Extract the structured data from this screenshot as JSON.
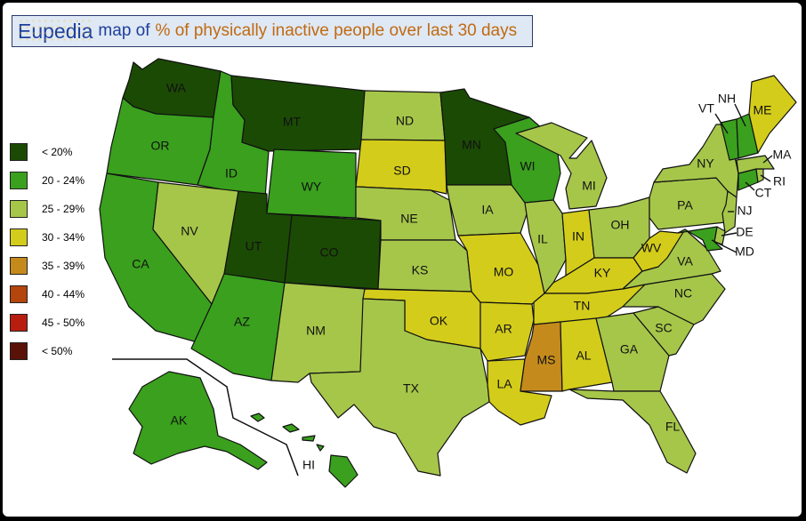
{
  "title": {
    "brand": "Eupedia",
    "map_of": "map of",
    "subject": "% of physically inactive people over last 30 days"
  },
  "legend": [
    {
      "label": "< 20%",
      "color": "#1b4a05"
    },
    {
      "label": "20 - 24%",
      "color": "#3aa01e"
    },
    {
      "label": "25 - 29%",
      "color": "#a6c64a"
    },
    {
      "label": "30 - 34%",
      "color": "#d4cc1a"
    },
    {
      "label": "35 - 39%",
      "color": "#c48a1c"
    },
    {
      "label": "40 - 44%",
      "color": "#b4450c"
    },
    {
      "label": "45 - 50%",
      "color": "#b81e10"
    },
    {
      "label": "< 50%",
      "color": "#5a1208"
    }
  ],
  "states": [
    {
      "id": "WA",
      "label": "WA",
      "cls": 0
    },
    {
      "id": "OR",
      "label": "OR",
      "cls": 1
    },
    {
      "id": "CA",
      "label": "CA",
      "cls": 1
    },
    {
      "id": "ID",
      "label": "ID",
      "cls": 1
    },
    {
      "id": "NV",
      "label": "NV",
      "cls": 2
    },
    {
      "id": "MT",
      "label": "MT",
      "cls": 0
    },
    {
      "id": "WY",
      "label": "WY",
      "cls": 1
    },
    {
      "id": "UT",
      "label": "UT",
      "cls": 0
    },
    {
      "id": "CO",
      "label": "CO",
      "cls": 0
    },
    {
      "id": "AZ",
      "label": "AZ",
      "cls": 1
    },
    {
      "id": "NM",
      "label": "NM",
      "cls": 2
    },
    {
      "id": "ND",
      "label": "ND",
      "cls": 2
    },
    {
      "id": "SD",
      "label": "SD",
      "cls": 3
    },
    {
      "id": "NE",
      "label": "NE",
      "cls": 2
    },
    {
      "id": "KS",
      "label": "KS",
      "cls": 2
    },
    {
      "id": "OK",
      "label": "OK",
      "cls": 3
    },
    {
      "id": "TX",
      "label": "TX",
      "cls": 2
    },
    {
      "id": "MN",
      "label": "MN",
      "cls": 0
    },
    {
      "id": "IA",
      "label": "IA",
      "cls": 2
    },
    {
      "id": "MO",
      "label": "MO",
      "cls": 3
    },
    {
      "id": "AR",
      "label": "AR",
      "cls": 3
    },
    {
      "id": "LA",
      "label": "LA",
      "cls": 3
    },
    {
      "id": "WI",
      "label": "WI",
      "cls": 1
    },
    {
      "id": "IL",
      "label": "IL",
      "cls": 2
    },
    {
      "id": "MI",
      "label": "MI",
      "cls": 2
    },
    {
      "id": "IN",
      "label": "IN",
      "cls": 3
    },
    {
      "id": "OH",
      "label": "OH",
      "cls": 2
    },
    {
      "id": "KY",
      "label": "KY",
      "cls": 3
    },
    {
      "id": "TN",
      "label": "TN",
      "cls": 3
    },
    {
      "id": "MS",
      "label": "MS",
      "cls": 4
    },
    {
      "id": "AL",
      "label": "AL",
      "cls": 3
    },
    {
      "id": "GA",
      "label": "GA",
      "cls": 2
    },
    {
      "id": "FL",
      "label": "FL",
      "cls": 2
    },
    {
      "id": "SC",
      "label": "SC",
      "cls": 2
    },
    {
      "id": "NC",
      "label": "NC",
      "cls": 2
    },
    {
      "id": "VA",
      "label": "VA",
      "cls": 2
    },
    {
      "id": "WV",
      "label": "WV",
      "cls": 3
    },
    {
      "id": "PA",
      "label": "PA",
      "cls": 2
    },
    {
      "id": "NY",
      "label": "NY",
      "cls": 2
    },
    {
      "id": "NJ",
      "label": "NJ",
      "cls": 2
    },
    {
      "id": "DE",
      "label": "DE",
      "cls": 2
    },
    {
      "id": "MD",
      "label": "MD",
      "cls": 1
    },
    {
      "id": "CT",
      "label": "CT",
      "cls": 1
    },
    {
      "id": "RI",
      "label": "RI",
      "cls": 2
    },
    {
      "id": "MA",
      "label": "MA",
      "cls": 2
    },
    {
      "id": "VT",
      "label": "VT",
      "cls": 1
    },
    {
      "id": "NH",
      "label": "NH",
      "cls": 1
    },
    {
      "id": "ME",
      "label": "ME",
      "cls": 3
    },
    {
      "id": "AK",
      "label": "AK",
      "cls": 1
    },
    {
      "id": "HI",
      "label": "HI",
      "cls": 1
    }
  ]
}
